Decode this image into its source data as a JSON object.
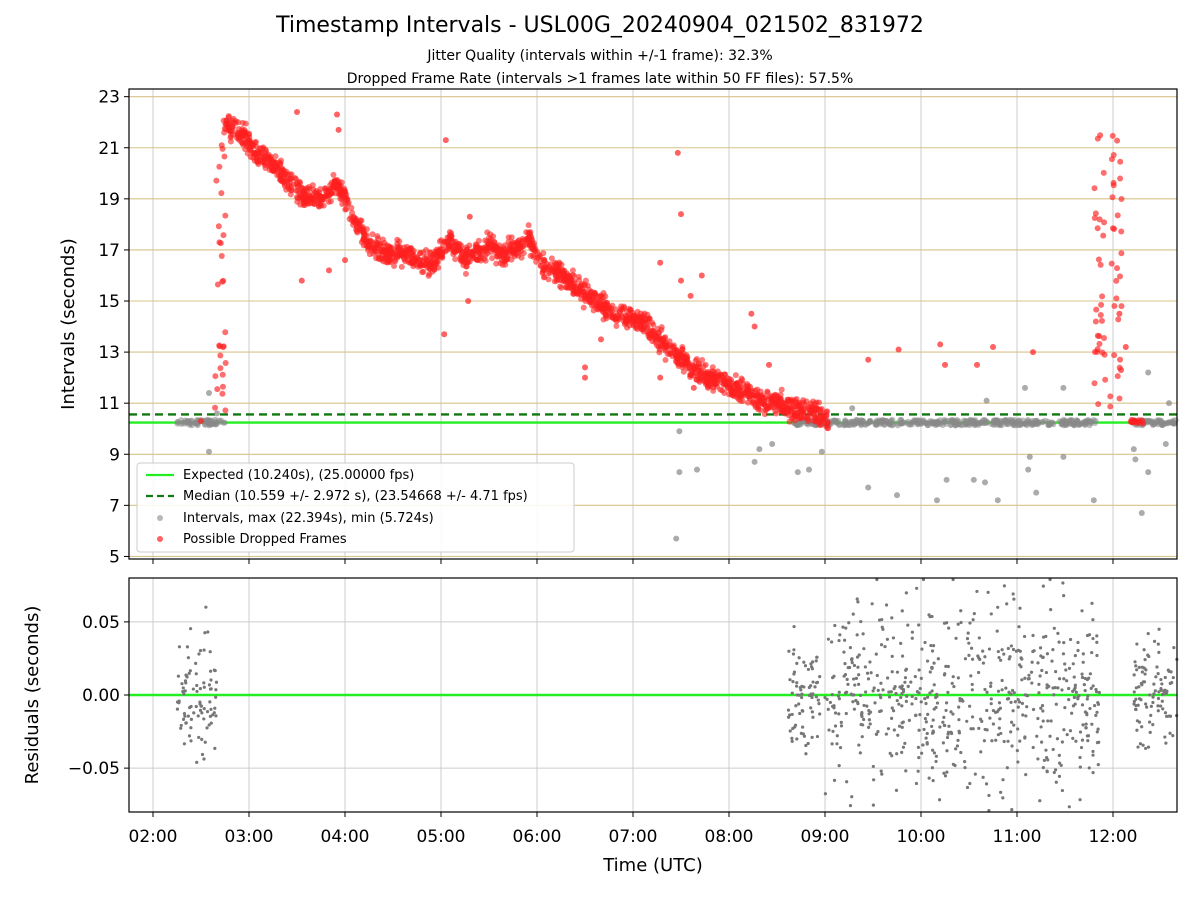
{
  "title": "Timestamp Intervals - USL00G_20240904_021502_831972",
  "subtitle_1": "Jitter Quality (intervals within +/-1 frame): 32.3%",
  "subtitle_2": "Dropped Frame Rate (intervals >1 frames late within 50 FF files): 57.5%",
  "chart_data": [
    {
      "type": "scatter",
      "panel": "top",
      "ylabel": "Intervals (seconds)",
      "xlim": [
        "01:45",
        "12:40"
      ],
      "ylim": [
        4.9,
        23.3
      ],
      "yticks": [
        5,
        7,
        9,
        11,
        13,
        15,
        17,
        19,
        21,
        23
      ],
      "grid": true,
      "legend_position": "lower-left",
      "reference_lines": [
        {
          "name": "Expected (10.240s), (25.00000 fps)",
          "y": 10.24,
          "color": "#22ee22",
          "style": "solid"
        },
        {
          "name": "Median (10.559 +/- 2.972 s), (23.54668 +/- 4.71 fps)",
          "y": 10.559,
          "color": "#117711",
          "style": "dashed"
        }
      ],
      "series": [
        {
          "name": "Intervals, max (22.394s), min (5.724s)",
          "color": "#888888",
          "segments": [
            {
              "x_start": "02:15",
              "x_end": "02:45",
              "y": 10.24
            },
            {
              "x_start": "08:40",
              "x_end": "11:50",
              "y": 10.24
            },
            {
              "x_start": "12:12",
              "x_end": "12:40",
              "y": 10.24
            }
          ],
          "outliers": [
            {
              "x": "02:35",
              "y": 11.4
            },
            {
              "x": "02:35",
              "y": 9.1
            },
            {
              "x": "02:40",
              "y": 10.6
            },
            {
              "x": "07:27",
              "y": 5.7
            },
            {
              "x": "07:29",
              "y": 8.3
            },
            {
              "x": "07:29",
              "y": 9.9
            },
            {
              "x": "07:40",
              "y": 8.4
            },
            {
              "x": "08:16",
              "y": 8.7
            },
            {
              "x": "08:19",
              "y": 9.2
            },
            {
              "x": "08:27",
              "y": 9.4
            },
            {
              "x": "08:43",
              "y": 8.3
            },
            {
              "x": "08:50",
              "y": 8.4
            },
            {
              "x": "08:58",
              "y": 9.1
            },
            {
              "x": "09:17",
              "y": 10.8
            },
            {
              "x": "09:27",
              "y": 7.7
            },
            {
              "x": "09:45",
              "y": 7.4
            },
            {
              "x": "10:10",
              "y": 7.2
            },
            {
              "x": "10:16",
              "y": 8.0
            },
            {
              "x": "10:33",
              "y": 8.0
            },
            {
              "x": "10:40",
              "y": 7.9
            },
            {
              "x": "10:41",
              "y": 11.1
            },
            {
              "x": "10:48",
              "y": 7.2
            },
            {
              "x": "11:05",
              "y": 11.6
            },
            {
              "x": "11:07",
              "y": 8.4
            },
            {
              "x": "11:08",
              "y": 8.9
            },
            {
              "x": "11:12",
              "y": 7.5
            },
            {
              "x": "11:29",
              "y": 11.6
            },
            {
              "x": "11:29",
              "y": 8.9
            },
            {
              "x": "11:48",
              "y": 7.2
            },
            {
              "x": "12:13",
              "y": 9.2
            },
            {
              "x": "12:14",
              "y": 8.8
            },
            {
              "x": "12:18",
              "y": 6.7
            },
            {
              "x": "12:22",
              "y": 8.3
            },
            {
              "x": "12:22",
              "y": 12.2
            },
            {
              "x": "12:33",
              "y": 9.4
            },
            {
              "x": "12:35",
              "y": 11.0
            }
          ]
        },
        {
          "name": "Possible Dropped Frames",
          "color": "#ff2020",
          "trend": [
            {
              "x": "02:44",
              "y": 21.8
            },
            {
              "x": "02:50",
              "y": 21.9
            },
            {
              "x": "02:58",
              "y": 21.4
            },
            {
              "x": "03:05",
              "y": 20.7
            },
            {
              "x": "03:15",
              "y": 20.4
            },
            {
              "x": "03:25",
              "y": 19.6
            },
            {
              "x": "03:35",
              "y": 19.1
            },
            {
              "x": "03:45",
              "y": 18.9
            },
            {
              "x": "03:55",
              "y": 19.6
            },
            {
              "x": "04:05",
              "y": 18.3
            },
            {
              "x": "04:15",
              "y": 17.2
            },
            {
              "x": "04:25",
              "y": 16.9
            },
            {
              "x": "04:40",
              "y": 16.8
            },
            {
              "x": "04:55",
              "y": 16.4
            },
            {
              "x": "05:05",
              "y": 17.4
            },
            {
              "x": "05:15",
              "y": 16.6
            },
            {
              "x": "05:30",
              "y": 17.2
            },
            {
              "x": "05:40",
              "y": 16.8
            },
            {
              "x": "05:55",
              "y": 17.4
            },
            {
              "x": "06:05",
              "y": 16.3
            },
            {
              "x": "06:20",
              "y": 15.9
            },
            {
              "x": "06:35",
              "y": 15.1
            },
            {
              "x": "06:50",
              "y": 14.4
            },
            {
              "x": "07:05",
              "y": 14.2
            },
            {
              "x": "07:20",
              "y": 13.3
            },
            {
              "x": "07:35",
              "y": 12.5
            },
            {
              "x": "07:50",
              "y": 11.9
            },
            {
              "x": "08:05",
              "y": 11.6
            },
            {
              "x": "08:20",
              "y": 11.1
            },
            {
              "x": "08:35",
              "y": 10.9
            },
            {
              "x": "08:50",
              "y": 10.7
            },
            {
              "x": "09:02",
              "y": 10.3
            }
          ],
          "ramps": [
            {
              "x": "02:42",
              "y_from": 10.5,
              "y_to": 21.8
            },
            {
              "x": "11:52",
              "y_from": 10.5,
              "y_to": 21.9
            },
            {
              "x": "12:02",
              "y_from": 21.6,
              "y_to": 10.6
            }
          ],
          "outliers": [
            {
              "x": "02:30",
              "y": 10.3
            },
            {
              "x": "03:30",
              "y": 22.4
            },
            {
              "x": "03:33",
              "y": 15.8
            },
            {
              "x": "03:50",
              "y": 16.2
            },
            {
              "x": "03:55",
              "y": 22.3
            },
            {
              "x": "03:56",
              "y": 21.7
            },
            {
              "x": "04:00",
              "y": 16.6
            },
            {
              "x": "05:03",
              "y": 21.3
            },
            {
              "x": "05:02",
              "y": 13.7
            },
            {
              "x": "05:17",
              "y": 15.0
            },
            {
              "x": "05:18",
              "y": 18.3
            },
            {
              "x": "06:30",
              "y": 12.4
            },
            {
              "x": "06:30",
              "y": 12.0
            },
            {
              "x": "06:40",
              "y": 13.5
            },
            {
              "x": "07:17",
              "y": 16.5
            },
            {
              "x": "07:17",
              "y": 12.0
            },
            {
              "x": "07:28",
              "y": 20.8
            },
            {
              "x": "07:30",
              "y": 18.4
            },
            {
              "x": "07:30",
              "y": 15.8
            },
            {
              "x": "07:36",
              "y": 15.2
            },
            {
              "x": "07:38",
              "y": 11.6
            },
            {
              "x": "07:43",
              "y": 16.0
            },
            {
              "x": "08:14",
              "y": 14.5
            },
            {
              "x": "08:16",
              "y": 14.0
            },
            {
              "x": "08:25",
              "y": 12.5
            },
            {
              "x": "09:27",
              "y": 12.7
            },
            {
              "x": "09:46",
              "y": 13.1
            },
            {
              "x": "10:12",
              "y": 13.3
            },
            {
              "x": "10:15",
              "y": 12.5
            },
            {
              "x": "10:35",
              "y": 12.5
            },
            {
              "x": "10:45",
              "y": 13.2
            },
            {
              "x": "11:10",
              "y": 13.0
            },
            {
              "x": "12:05",
              "y": 12.3
            },
            {
              "x": "12:04",
              "y": 14.5
            },
            {
              "x": "12:08",
              "y": 13.2
            }
          ]
        }
      ]
    },
    {
      "type": "scatter",
      "panel": "bottom",
      "xlabel": "Time (UTC)",
      "ylabel": "Residuals (seconds)",
      "xlim": [
        "01:45",
        "12:40"
      ],
      "ylim": [
        -0.08,
        0.08
      ],
      "yticks": [
        0.05,
        0.0,
        -0.05
      ],
      "ytick_labels": [
        "0.05",
        "0.00",
        "−0.05"
      ],
      "xticks": [
        "02:00",
        "03:00",
        "04:00",
        "05:00",
        "06:00",
        "07:00",
        "08:00",
        "09:00",
        "10:00",
        "11:00",
        "12:00"
      ],
      "grid": true,
      "reference_lines": [
        {
          "y": 0.0,
          "color": "#22ee22",
          "style": "solid"
        }
      ],
      "series": [
        {
          "color": "#777777",
          "clusters": [
            {
              "x_start": "02:15",
              "x_end": "02:40",
              "y_spread": 0.035
            },
            {
              "x_start": "08:37",
              "x_end": "08:58",
              "y_spread": 0.035
            },
            {
              "x_start": "09:00",
              "x_end": "11:52",
              "y_spread": 0.055
            },
            {
              "x_start": "12:13",
              "x_end": "12:40",
              "y_spread": 0.035
            }
          ]
        }
      ]
    }
  ]
}
